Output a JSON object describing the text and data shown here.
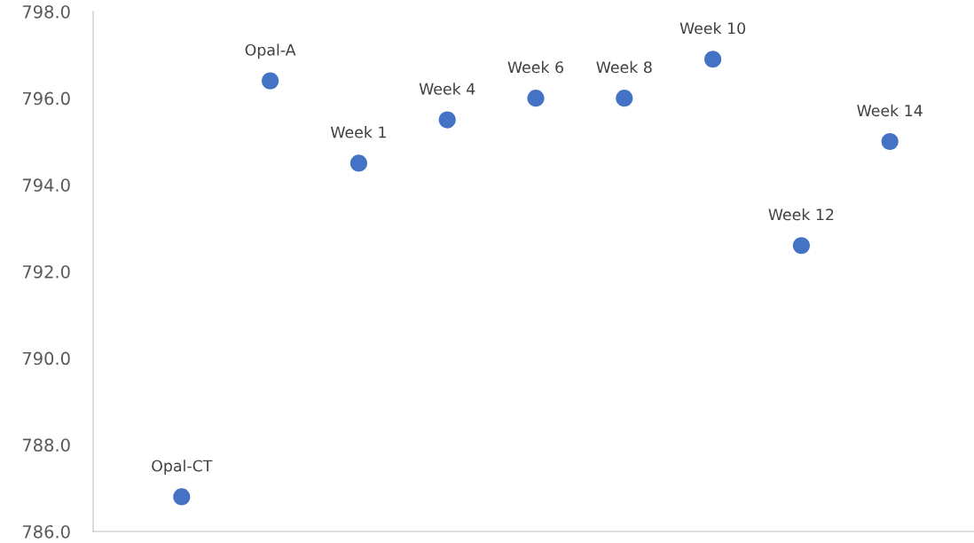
{
  "chart_data": {
    "type": "scatter",
    "categories": [
      null,
      null,
      null,
      null,
      null,
      null,
      null,
      null,
      null
    ],
    "series": [
      {
        "name": "Opal-CT",
        "color": "#4472c4",
        "values": [
          786.8,
          null,
          null,
          null,
          null,
          null,
          null,
          null,
          null
        ]
      },
      {
        "name": "Opal-A",
        "color": "#4472c4",
        "values": [
          null,
          796.4,
          null,
          null,
          null,
          null,
          null,
          null,
          null
        ]
      },
      {
        "name": "Week 1",
        "color": "#4472c4",
        "values": [
          null,
          null,
          794.5,
          null,
          null,
          null,
          null,
          null,
          null
        ]
      },
      {
        "name": "Week 4",
        "color": "#4472c4",
        "values": [
          null,
          null,
          null,
          795.5,
          null,
          null,
          null,
          null,
          null
        ]
      },
      {
        "name": "Week 6",
        "color": "#4472c4",
        "values": [
          null,
          null,
          null,
          null,
          796.0,
          null,
          null,
          null,
          null
        ]
      },
      {
        "name": "Week 8",
        "color": "#4472c4",
        "values": [
          null,
          null,
          null,
          null,
          null,
          796.0,
          null,
          null,
          null
        ]
      },
      {
        "name": "Week 10",
        "color": "#4472c4",
        "values": [
          null,
          null,
          null,
          null,
          null,
          null,
          796.9,
          null,
          null
        ]
      },
      {
        "name": "Week 12",
        "color": "#4472c4",
        "values": [
          null,
          null,
          null,
          null,
          null,
          null,
          null,
          792.6,
          null
        ]
      },
      {
        "name": "Week 14",
        "color": "#4472c4",
        "values": [
          null,
          null,
          null,
          null,
          null,
          null,
          null,
          null,
          795.0
        ]
      }
    ],
    "ylim": [
      786,
      798
    ],
    "yticks": [
      {
        "value": 786,
        "label": "786.0"
      },
      {
        "value": 788,
        "label": "788.0"
      },
      {
        "value": 790,
        "label": "790.0"
      },
      {
        "value": 792,
        "label": "792.0"
      },
      {
        "value": 794,
        "label": "794.0"
      },
      {
        "value": 796,
        "label": "796.0"
      },
      {
        "value": 798,
        "label": "798.0"
      }
    ],
    "grid": false,
    "legend": false,
    "tick_labels": "y",
    "marker": "circle"
  }
}
